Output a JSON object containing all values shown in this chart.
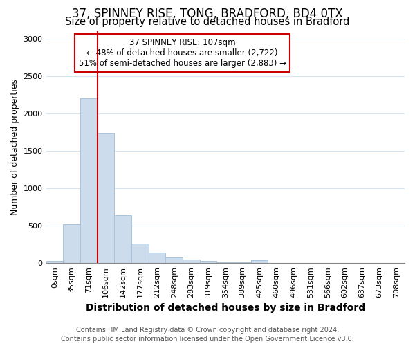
{
  "title1": "37, SPINNEY RISE, TONG, BRADFORD, BD4 0TX",
  "title2": "Size of property relative to detached houses in Bradford",
  "xlabel": "Distribution of detached houses by size in Bradford",
  "ylabel": "Number of detached properties",
  "footnote1": "Contains HM Land Registry data © Crown copyright and database right 2024.",
  "footnote2": "Contains public sector information licensed under the Open Government Licence v3.0.",
  "annotation_line1": "37 SPINNEY RISE: 107sqm",
  "annotation_line2": "← 48% of detached houses are smaller (2,722)",
  "annotation_line3": "51% of semi-detached houses are larger (2,883) →",
  "bar_color": "#ccdced",
  "bar_edge_color": "#a8c4dc",
  "vline_color": "#cc0000",
  "vline_x_idx": 3,
  "categories": [
    "0sqm",
    "35sqm",
    "71sqm",
    "106sqm",
    "142sqm",
    "177sqm",
    "212sqm",
    "248sqm",
    "283sqm",
    "319sqm",
    "354sqm",
    "389sqm",
    "425sqm",
    "460sqm",
    "496sqm",
    "531sqm",
    "566sqm",
    "602sqm",
    "637sqm",
    "673sqm",
    "708sqm"
  ],
  "values": [
    30,
    520,
    2200,
    1740,
    640,
    265,
    140,
    80,
    50,
    30,
    15,
    12,
    35,
    5,
    5,
    2,
    1,
    1,
    0,
    0,
    0
  ],
  "ylim": [
    0,
    3100
  ],
  "yticks": [
    0,
    500,
    1000,
    1500,
    2000,
    2500,
    3000
  ],
  "grid_color": "#d8e4f0",
  "background_color": "#ffffff",
  "annotation_box_color": "#ffffff",
  "annotation_box_edge": "#cc0000",
  "title1_fontsize": 12,
  "title2_fontsize": 10.5,
  "xlabel_fontsize": 10,
  "ylabel_fontsize": 9,
  "tick_fontsize": 8,
  "annotation_fontsize": 8.5,
  "footnote_fontsize": 7
}
